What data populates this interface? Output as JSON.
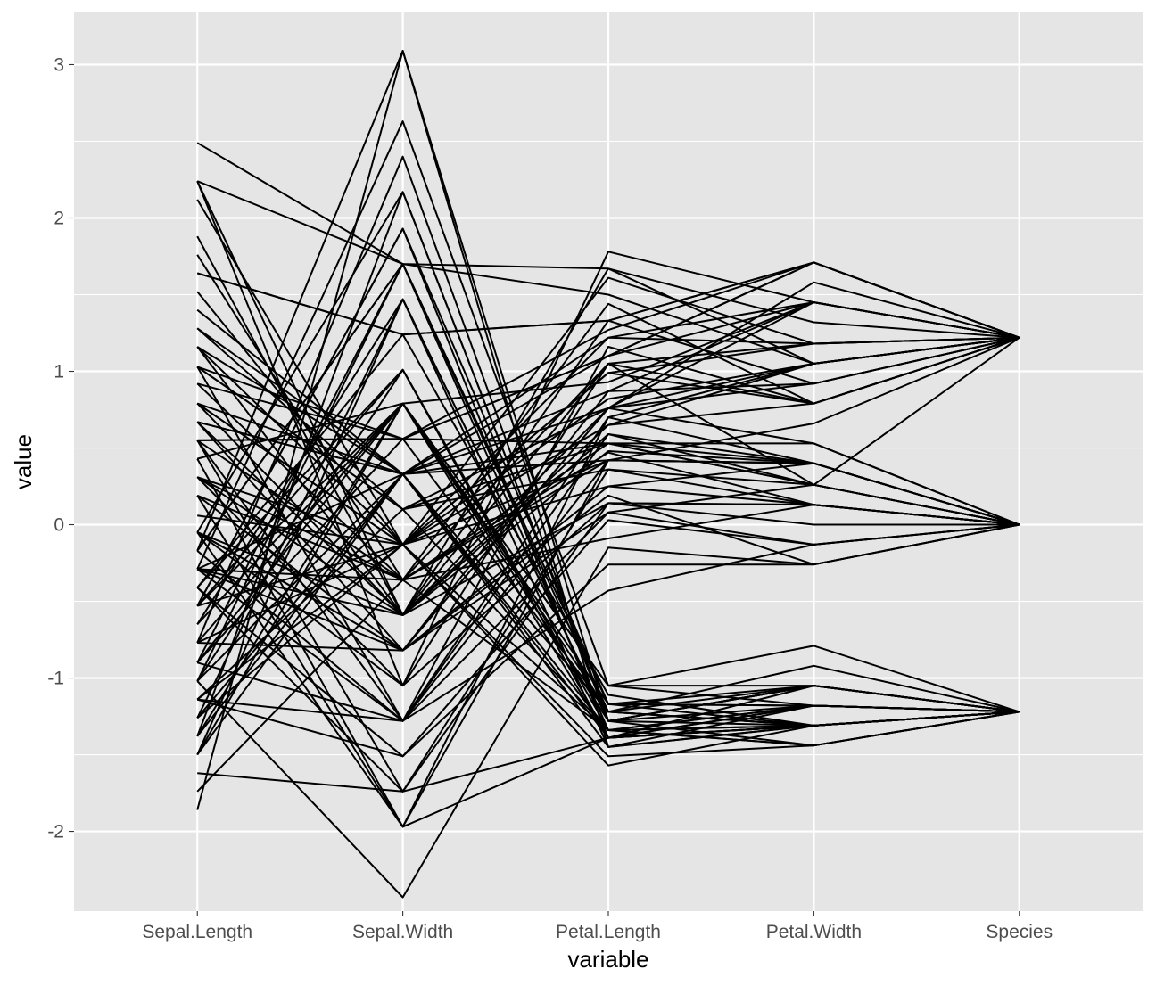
{
  "chart_data": {
    "type": "line",
    "subtype": "parallel-coordinates",
    "xlabel": "variable",
    "ylabel": "value",
    "categories": [
      "Sepal.Length",
      "Sepal.Width",
      "Petal.Length",
      "Petal.Width",
      "Species"
    ],
    "ylim": [
      -2.52,
      3.34
    ],
    "yticks": [
      -2,
      -1,
      0,
      1,
      2,
      3
    ],
    "grid": true,
    "legend": "none",
    "colors": {
      "panel": "#e5e5e5",
      "grid": "#ffffff",
      "line": "#000000",
      "tick_label": "#4d4d4d"
    },
    "series": [
      {
        "values": [
          -1.74,
          -0.36,
          -1.34,
          -1.31,
          -1.22
        ]
      },
      {
        "values": [
          -0.05,
          2.17,
          -1.28,
          -1.05,
          -1.22
        ]
      },
      {
        "values": [
          -1.26,
          0.33,
          -1.39,
          -1.31,
          -1.22
        ]
      },
      {
        "values": [
          -0.17,
          1.7,
          -1.17,
          -1.18,
          -1.22
        ]
      },
      {
        "values": [
          -1.62,
          -1.74,
          -1.39,
          -1.18,
          -1.22
        ]
      },
      {
        "values": [
          -0.77,
          2.4,
          -1.28,
          -1.44,
          -1.22
        ]
      },
      {
        "values": [
          -1.38,
          0.33,
          -1.22,
          -1.31,
          -1.22
        ]
      },
      {
        "values": [
          -0.53,
          1.93,
          -1.17,
          -1.05,
          -1.22
        ]
      },
      {
        "values": [
          -1.5,
          0.79,
          -1.28,
          -1.18,
          -1.22
        ]
      },
      {
        "values": [
          -0.29,
          2.63,
          -1.05,
          -0.79,
          -1.22
        ]
      },
      {
        "values": [
          -1.14,
          0.1,
          -1.34,
          -1.44,
          -1.22
        ]
      },
      {
        "values": [
          -0.41,
          1.24,
          -1.11,
          -1.31,
          -1.22
        ]
      },
      {
        "values": [
          -1.02,
          1.01,
          -1.39,
          -1.31,
          -1.22
        ]
      },
      {
        "values": [
          -1.86,
          3.09,
          -1.45,
          -1.18,
          -1.22
        ]
      },
      {
        "values": [
          -0.9,
          0.56,
          -1.22,
          -0.92,
          -1.22
        ]
      },
      {
        "values": [
          -1.5,
          1.47,
          -1.45,
          -1.31,
          -1.22
        ]
      },
      {
        "values": [
          -0.65,
          0.79,
          -1.05,
          -1.18,
          -1.22
        ]
      },
      {
        "values": [
          -1.14,
          -0.13,
          -1.51,
          -1.44,
          -1.22
        ]
      },
      {
        "values": [
          -0.05,
          -1.97,
          -1.39,
          -1.31,
          -1.22
        ]
      },
      {
        "values": [
          -1.26,
          1.47,
          -1.28,
          -1.05,
          -1.22
        ]
      },
      {
        "values": [
          -0.29,
          0.33,
          -1.22,
          -1.31,
          -1.22
        ]
      },
      {
        "values": [
          -1.02,
          1.7,
          -1.34,
          -1.18,
          -1.22
        ]
      },
      {
        "values": [
          -0.77,
          -0.13,
          -1.57,
          -1.31,
          -1.22
        ]
      },
      {
        "values": [
          -1.38,
          2.17,
          -1.28,
          -1.05,
          -1.22
        ]
      },
      {
        "values": [
          -0.53,
          1.01,
          -1.34,
          -1.44,
          -1.22
        ]
      },
      {
        "values": [
          -0.9,
          0.79,
          -1.39,
          -1.18,
          -1.22
        ]
      },
      {
        "values": [
          2.49,
          1.7,
          1.5,
          1.05,
          1.22
        ]
      },
      {
        "values": [
          1.4,
          0.33,
          0.53,
          0.26,
          0.0
        ]
      },
      {
        "values": [
          2.24,
          -1.05,
          1.78,
          1.45,
          1.22
        ]
      },
      {
        "values": [
          1.03,
          0.56,
          1.1,
          1.71,
          1.22
        ]
      },
      {
        "values": [
          1.64,
          1.24,
          1.33,
          1.71,
          1.22
        ]
      },
      {
        "values": [
          0.55,
          -1.28,
          0.59,
          0.4,
          0.0
        ]
      },
      {
        "values": [
          2.12,
          -0.13,
          1.61,
          1.18,
          1.22
        ]
      },
      {
        "values": [
          1.88,
          -0.59,
          1.33,
          0.92,
          1.22
        ]
      },
      {
        "values": [
          2.24,
          1.7,
          1.67,
          1.32,
          1.22
        ]
      },
      {
        "values": [
          0.79,
          -0.13,
          0.82,
          1.05,
          1.22
        ]
      },
      {
        "values": [
          1.28,
          0.1,
          0.76,
          1.45,
          1.22
        ]
      },
      {
        "values": [
          0.43,
          -1.97,
          0.42,
          0.4,
          0.0
        ]
      },
      {
        "values": [
          1.16,
          -0.59,
          0.59,
          0.26,
          0.0
        ]
      },
      {
        "values": [
          0.67,
          0.33,
          0.87,
          1.45,
          1.22
        ]
      },
      {
        "values": [
          0.31,
          -0.36,
          0.53,
          0.26,
          0.0
        ]
      },
      {
        "values": [
          -0.17,
          -1.28,
          0.7,
          1.05,
          1.22
        ]
      },
      {
        "values": [
          -0.05,
          -0.82,
          0.76,
          0.92,
          1.22
        ]
      },
      {
        "values": [
          0.55,
          -1.74,
          0.36,
          0.13,
          0.0
        ]
      },
      {
        "values": [
          0.92,
          -0.36,
          0.47,
          0.13,
          0.0
        ]
      },
      {
        "values": [
          1.03,
          0.1,
          0.53,
          0.4,
          0.0
        ]
      },
      {
        "values": [
          1.52,
          -0.13,
          1.22,
          1.18,
          1.22
        ]
      },
      {
        "values": [
          0.19,
          -1.97,
          0.7,
          0.4,
          0.0
        ]
      },
      {
        "values": [
          -0.41,
          -1.74,
          0.14,
          0.13,
          0.0
        ]
      },
      {
        "values": [
          0.67,
          -0.59,
          1.05,
          1.18,
          1.22
        ]
      },
      {
        "values": [
          -0.29,
          -0.82,
          0.25,
          0.13,
          0.0
        ]
      },
      {
        "values": [
          1.03,
          -1.28,
          1.16,
          0.79,
          1.22
        ]
      },
      {
        "values": [
          -1.14,
          -1.51,
          -0.26,
          -0.26,
          0.0
        ]
      },
      {
        "values": [
          -0.05,
          -0.59,
          0.76,
          1.58,
          1.22
        ]
      },
      {
        "values": [
          0.31,
          -0.59,
          0.14,
          0.13,
          0.0
        ]
      },
      {
        "values": [
          -0.9,
          -1.28,
          -0.43,
          -0.13,
          0.0
        ]
      },
      {
        "values": [
          0.55,
          0.56,
          1.27,
          1.71,
          1.22
        ]
      },
      {
        "values": [
          -0.29,
          -0.36,
          -0.09,
          0.13,
          0.0
        ]
      },
      {
        "values": [
          0.79,
          -0.13,
          0.99,
          0.79,
          1.22
        ]
      },
      {
        "values": [
          -0.53,
          -0.13,
          0.42,
          0.4,
          0.0
        ]
      },
      {
        "values": [
          1.28,
          0.33,
          1.1,
          1.45,
          1.22
        ]
      },
      {
        "values": [
          0.19,
          -0.36,
          0.42,
          0.4,
          0.0
        ]
      },
      {
        "values": [
          -0.05,
          -1.05,
          0.14,
          0.0,
          0.0
        ]
      },
      {
        "values": [
          0.67,
          0.33,
          0.42,
          0.4,
          0.0
        ]
      },
      {
        "values": [
          -1.02,
          -2.43,
          -0.15,
          -0.26,
          0.0
        ]
      },
      {
        "values": [
          0.79,
          -0.59,
          0.48,
          0.4,
          0.0
        ]
      },
      {
        "values": [
          -0.41,
          -1.51,
          0.03,
          -0.13,
          0.0
        ]
      },
      {
        "values": [
          0.31,
          -1.05,
          1.05,
          0.26,
          1.22
        ]
      },
      {
        "values": [
          -0.77,
          0.79,
          -1.05,
          -1.05,
          -1.22
        ]
      },
      {
        "values": [
          0.43,
          0.79,
          0.93,
          1.45,
          1.22
        ]
      },
      {
        "values": [
          -0.17,
          3.09,
          -1.28,
          -1.05,
          -1.22
        ]
      },
      {
        "values": [
          0.06,
          -0.13,
          0.25,
          0.4,
          0.0
        ]
      },
      {
        "values": [
          -0.65,
          1.47,
          -1.28,
          -1.31,
          -1.22
        ]
      },
      {
        "values": [
          1.16,
          0.33,
          1.22,
          1.45,
          1.22
        ]
      },
      {
        "values": [
          -0.9,
          1.7,
          -1.22,
          -1.31,
          -1.22
        ]
      },
      {
        "values": [
          0.19,
          -0.82,
          0.76,
          0.53,
          0.0
        ]
      },
      {
        "values": [
          -1.38,
          0.79,
          -1.22,
          -1.05,
          -1.22
        ]
      },
      {
        "values": [
          1.64,
          1.24,
          1.33,
          1.71,
          1.22
        ]
      },
      {
        "values": [
          -0.29,
          -0.59,
          0.65,
          1.05,
          1.22
        ]
      },
      {
        "values": [
          -0.53,
          0.79,
          -1.17,
          -1.31,
          -1.22
        ]
      },
      {
        "values": [
          0.55,
          -0.36,
          1.05,
          0.79,
          1.22
        ]
      },
      {
        "values": [
          -1.14,
          -1.28,
          0.42,
          0.66,
          1.22
        ]
      },
      {
        "values": [
          0.67,
          -0.82,
          0.87,
          0.92,
          1.22
        ]
      },
      {
        "values": [
          -1.5,
          0.33,
          -1.34,
          -1.31,
          -1.22
        ]
      },
      {
        "values": [
          0.92,
          0.56,
          1.1,
          1.71,
          1.22
        ]
      },
      {
        "values": [
          -0.41,
          1.01,
          -1.39,
          -1.31,
          -1.22
        ]
      },
      {
        "values": [
          1.16,
          -0.13,
          0.99,
          1.18,
          1.22
        ]
      },
      {
        "values": [
          -0.77,
          -0.82,
          0.08,
          0.26,
          0.0
        ]
      },
      {
        "values": [
          0.31,
          -0.13,
          0.65,
          0.79,
          1.22
        ]
      },
      {
        "values": [
          -1.02,
          0.33,
          -1.45,
          -1.31,
          -1.22
        ]
      },
      {
        "values": [
          1.76,
          -0.36,
          1.44,
          0.79,
          1.22
        ]
      },
      {
        "values": [
          -0.05,
          -0.82,
          0.19,
          -0.26,
          0.0
        ]
      },
      {
        "values": [
          0.55,
          0.56,
          0.53,
          0.53,
          0.0
        ]
      },
      {
        "values": [
          -1.26,
          -0.13,
          -1.34,
          -1.18,
          -1.22
        ]
      },
      {
        "values": [
          1.03,
          0.1,
          0.36,
          0.26,
          0.0
        ]
      },
      {
        "values": [
          -0.17,
          1.7,
          -1.17,
          -1.18,
          -1.22
        ]
      },
      {
        "values": [
          0.79,
          0.33,
          0.76,
          1.05,
          1.22
        ]
      },
      {
        "values": [
          -0.53,
          1.93,
          -1.39,
          -1.05,
          -1.22
        ]
      },
      {
        "values": [
          -0.29,
          -1.28,
          0.08,
          -0.13,
          0.0
        ]
      },
      {
        "values": [
          2.24,
          -0.59,
          1.67,
          1.05,
          1.22
        ]
      }
    ]
  }
}
